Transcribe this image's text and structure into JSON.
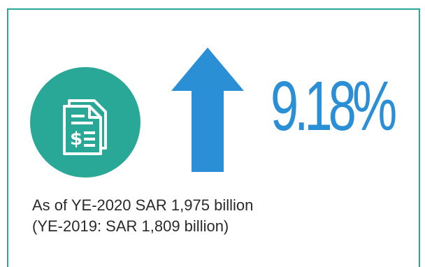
{
  "stat": {
    "icon": "invoice-document-icon",
    "trend_icon": "arrow-up-icon",
    "value": "9.18%",
    "line1": "As of YE-2020 SAR 1,975 billion",
    "line2": "(YE-2019: SAR 1,809 billion)"
  },
  "colors": {
    "teal": "#2aa897",
    "blue": "#2b8fd6",
    "text": "#2a2a2a"
  }
}
